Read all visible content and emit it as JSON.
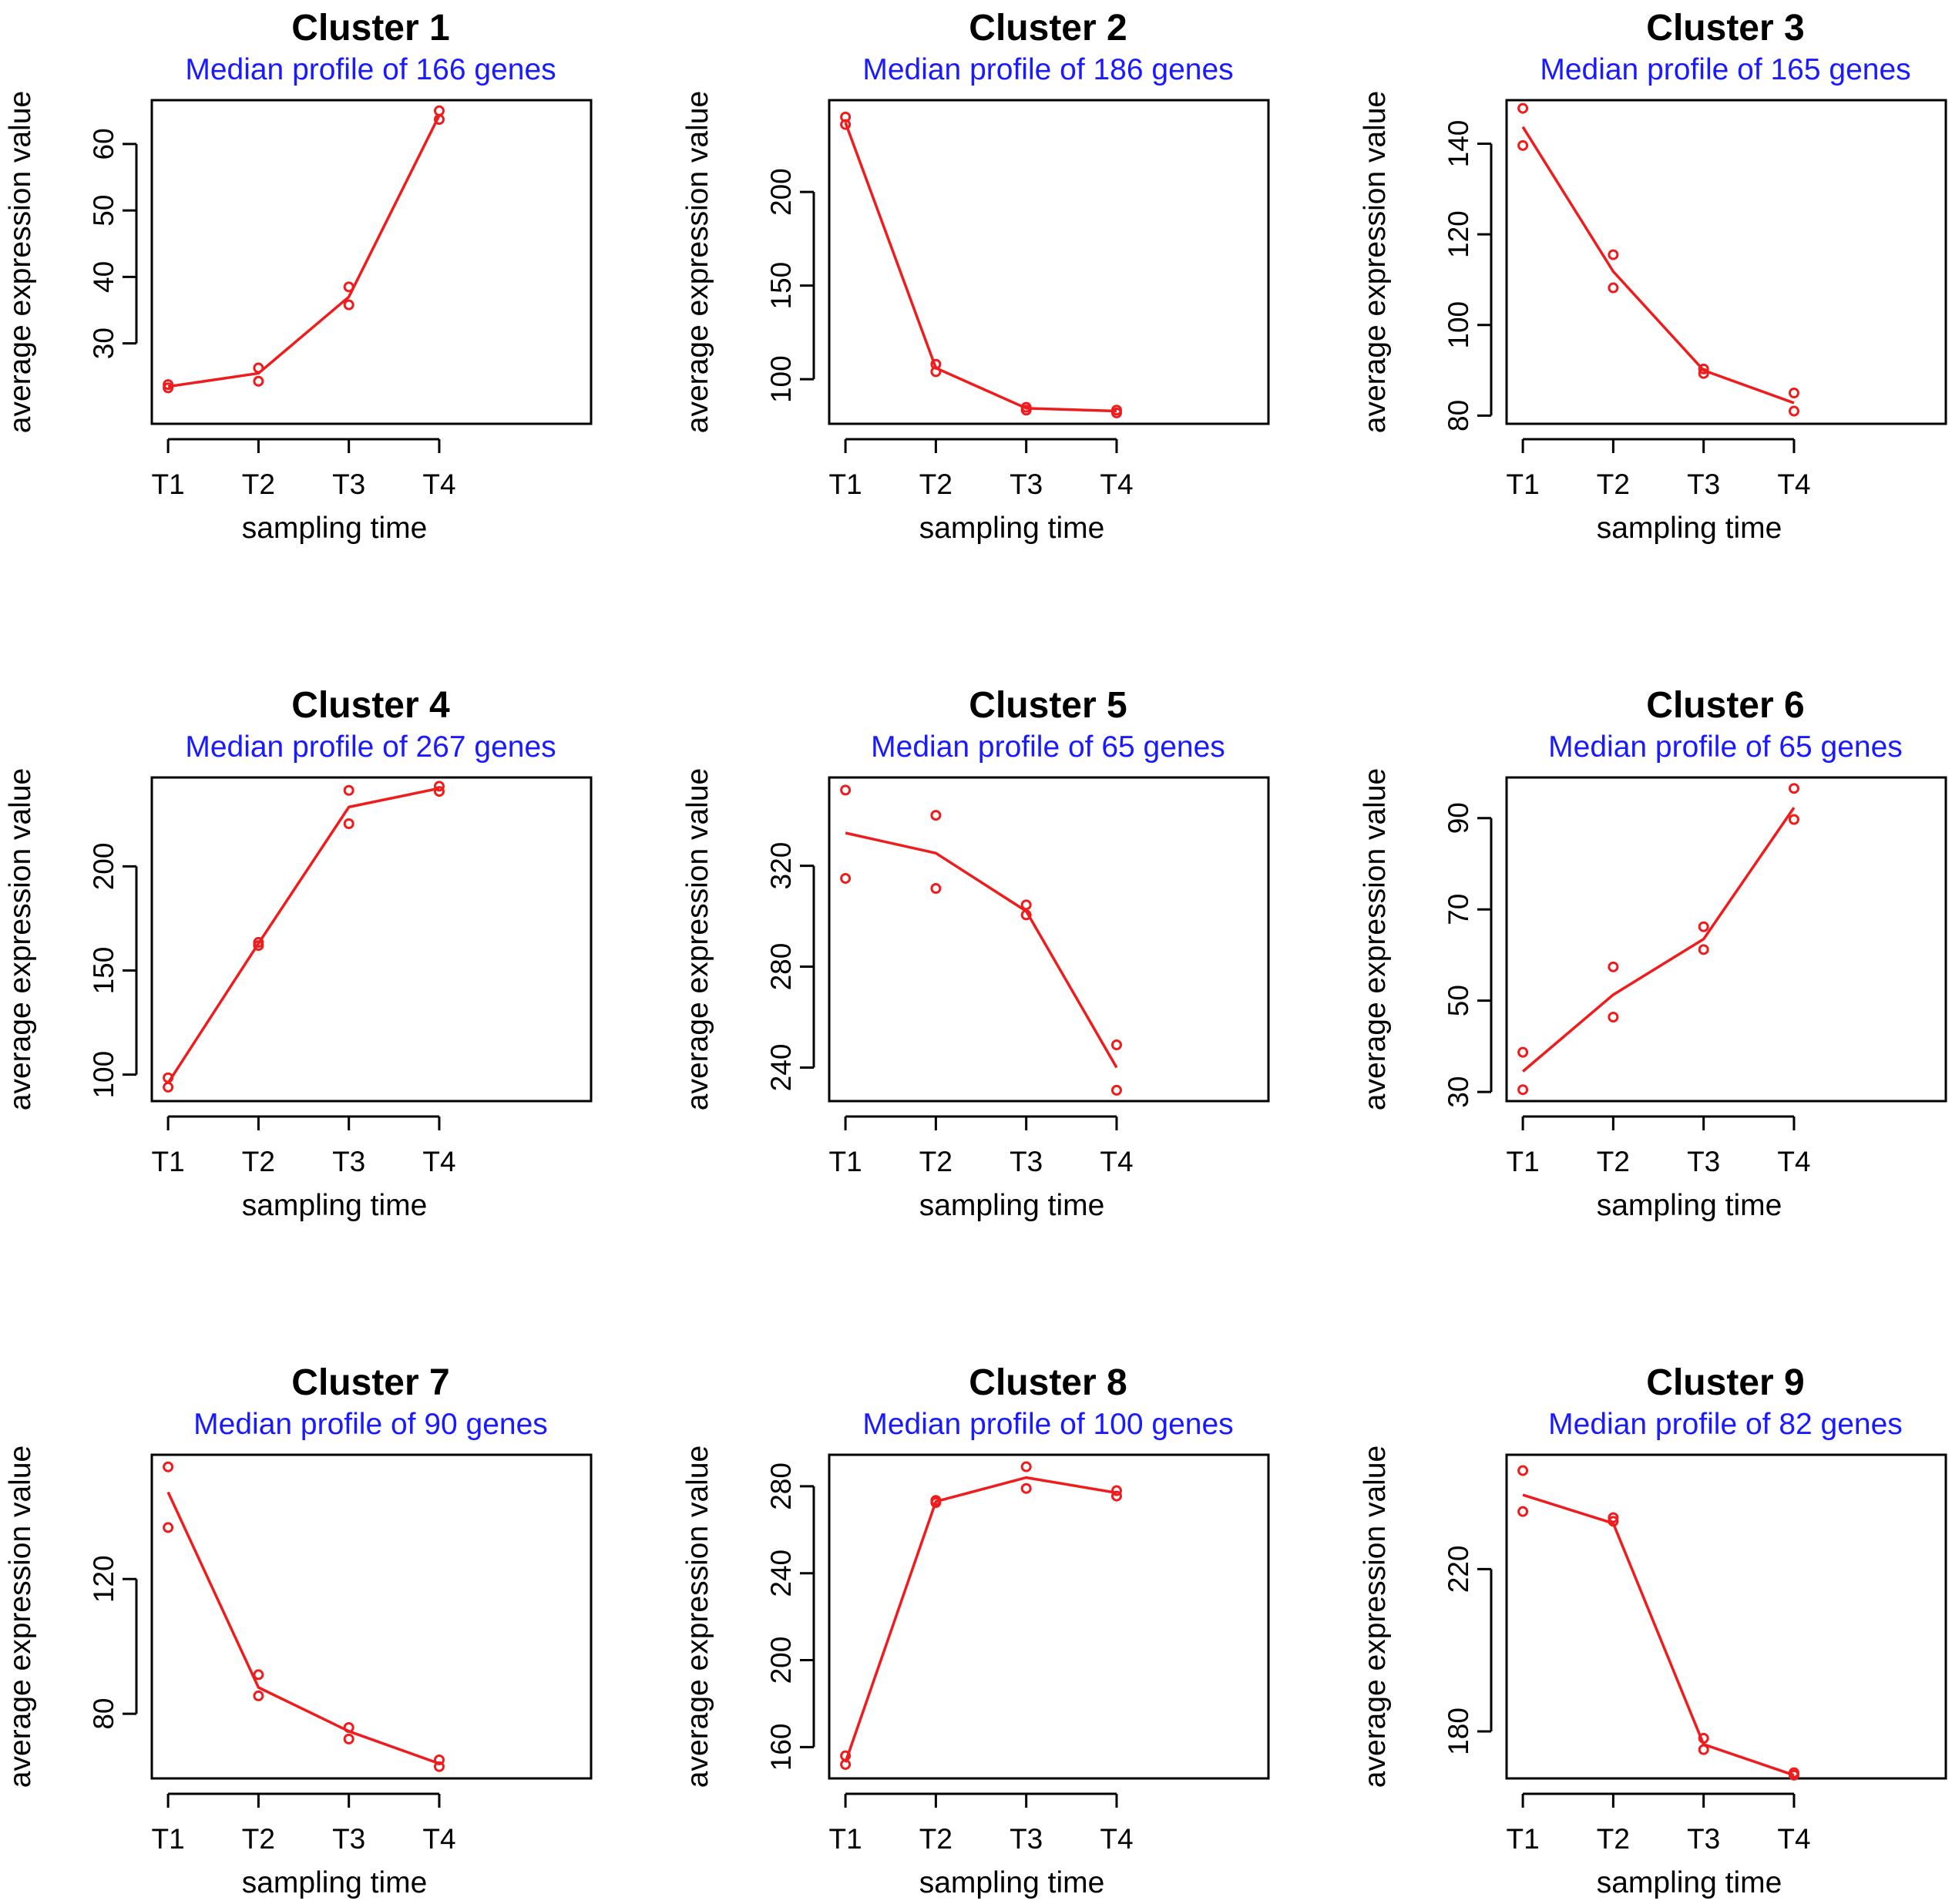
{
  "colors": {
    "series": "#ee1c1c",
    "subtitle": "#1a1aff",
    "axis": "#000000",
    "background": "#ffffff"
  },
  "chart_data": [
    {
      "type": "line",
      "title": "Cluster 1",
      "subtitle": "Median profile of 166 genes",
      "xlabel": "sampling time",
      "ylabel": "average expression value",
      "categories": [
        "T1",
        "T2",
        "T3",
        "T4"
      ],
      "xlim": [
        0.82,
        5.68
      ],
      "ylim": [
        17.9,
        66.6
      ],
      "yticks": [
        30,
        40,
        50,
        60
      ],
      "line": [
        23.5,
        25.5,
        37.0,
        64.3
      ],
      "points": [
        [
          23.3,
          23.8
        ],
        [
          24.3,
          26.3
        ],
        [
          35.8,
          38.5
        ],
        [
          63.7,
          65.0
        ]
      ]
    },
    {
      "type": "line",
      "title": "Cluster 2",
      "subtitle": "Median profile of 186 genes",
      "xlabel": "sampling time",
      "ylabel": "average expression value",
      "categories": [
        "T1",
        "T2",
        "T3",
        "T4"
      ],
      "xlim": [
        0.82,
        5.68
      ],
      "ylim": [
        76.2,
        249.0
      ],
      "yticks": [
        100,
        150,
        200
      ],
      "line": [
        237,
        106,
        84.5,
        83
      ],
      "points": [
        [
          236,
          240
        ],
        [
          104,
          108
        ],
        [
          83.5,
          85
        ],
        [
          82,
          83.5
        ]
      ]
    },
    {
      "type": "line",
      "title": "Cluster 3",
      "subtitle": "Median profile of 165 genes",
      "xlabel": "sampling time",
      "ylabel": "average expression value",
      "categories": [
        "T1",
        "T2",
        "T3",
        "T4"
      ],
      "xlim": [
        0.82,
        5.68
      ],
      "ylim": [
        78.2,
        149.6
      ],
      "yticks": [
        80,
        100,
        120,
        140
      ],
      "line": [
        143.7,
        111.8,
        90,
        82.8
      ],
      "points": [
        [
          139.6,
          147.8
        ],
        [
          108.2,
          115.5
        ],
        [
          89.3,
          90.3
        ],
        [
          81,
          85
        ]
      ]
    },
    {
      "type": "line",
      "title": "Cluster 4",
      "subtitle": "Median profile of 267 genes",
      "xlabel": "sampling time",
      "ylabel": "average expression value",
      "categories": [
        "T1",
        "T2",
        "T3",
        "T4"
      ],
      "xlim": [
        0.82,
        5.68
      ],
      "ylim": [
        87.3,
        242.7
      ],
      "yticks": [
        100,
        150,
        200
      ],
      "line": [
        96,
        163,
        228.5,
        237.5
      ],
      "points": [
        [
          94,
          98.5
        ],
        [
          162,
          163.5
        ],
        [
          220.5,
          236.5
        ],
        [
          236,
          238.5
        ]
      ]
    },
    {
      "type": "line",
      "title": "Cluster 5",
      "subtitle": "Median profile of 65 genes",
      "xlabel": "sampling time",
      "ylabel": "average expression value",
      "categories": [
        "T1",
        "T2",
        "T3",
        "T4"
      ],
      "xlim": [
        0.82,
        5.68
      ],
      "ylim": [
        226.7,
        355.0
      ],
      "yticks": [
        240,
        280,
        320
      ],
      "line": [
        333,
        325,
        302,
        240
      ],
      "points": [
        [
          315,
          350
        ],
        [
          311,
          340
        ],
        [
          300.5,
          304.5
        ],
        [
          231,
          249
        ]
      ]
    },
    {
      "type": "line",
      "title": "Cluster 6",
      "subtitle": "Median profile of 65 genes",
      "xlabel": "sampling time",
      "ylabel": "average expression value",
      "categories": [
        "T1",
        "T2",
        "T3",
        "T4"
      ],
      "xlim": [
        0.82,
        5.68
      ],
      "ylim": [
        28.0,
        98.9
      ],
      "yticks": [
        30,
        50,
        70,
        90
      ],
      "line": [
        34.5,
        51.3,
        63.5,
        92.3
      ],
      "points": [
        [
          30.5,
          38.7
        ],
        [
          46.4,
          57.4
        ],
        [
          61.2,
          66.2
        ],
        [
          89.7,
          96.5
        ]
      ]
    },
    {
      "type": "line",
      "title": "Cluster 7",
      "subtitle": "Median profile of 90 genes",
      "xlabel": "sampling time",
      "ylabel": "average expression value",
      "categories": [
        "T1",
        "T2",
        "T3",
        "T4"
      ],
      "xlim": [
        0.82,
        5.68
      ],
      "ylim": [
        60.8,
        156.9
      ],
      "yticks": [
        80,
        120
      ],
      "line": [
        145.8,
        87.8,
        74.8,
        65.2
      ],
      "points": [
        [
          135.3,
          153.3
        ],
        [
          85.3,
          91.6
        ],
        [
          72.5,
          75.9
        ],
        [
          64.3,
          66.3
        ]
      ]
    },
    {
      "type": "line",
      "title": "Cluster 8",
      "subtitle": "Median profile of 100 genes",
      "xlabel": "sampling time",
      "ylabel": "average expression value",
      "categories": [
        "T1",
        "T2",
        "T3",
        "T4"
      ],
      "xlim": [
        0.82,
        5.68
      ],
      "ylim": [
        145.6,
        294.5
      ],
      "yticks": [
        160,
        200,
        240,
        280
      ],
      "line": [
        153,
        273,
        284,
        277
      ],
      "points": [
        [
          152,
          156
        ],
        [
          272.5,
          273.5
        ],
        [
          279,
          289
        ],
        [
          275.5,
          278
        ]
      ]
    },
    {
      "type": "line",
      "title": "Cluster 9",
      "subtitle": "Median profile of 82 genes",
      "xlabel": "sampling time",
      "ylabel": "average expression value",
      "categories": [
        "T1",
        "T2",
        "T3",
        "T4"
      ],
      "xlim": [
        0.82,
        5.68
      ],
      "ylim": [
        168.4,
        248.2
      ],
      "yticks": [
        180,
        220
      ],
      "line": [
        238.3,
        231.3,
        176.8,
        169.2
      ],
      "points": [
        [
          234.2,
          244.3
        ],
        [
          231.8,
          232.7
        ],
        [
          175.5,
          178.3
        ],
        [
          169.2,
          169.8
        ]
      ]
    }
  ]
}
